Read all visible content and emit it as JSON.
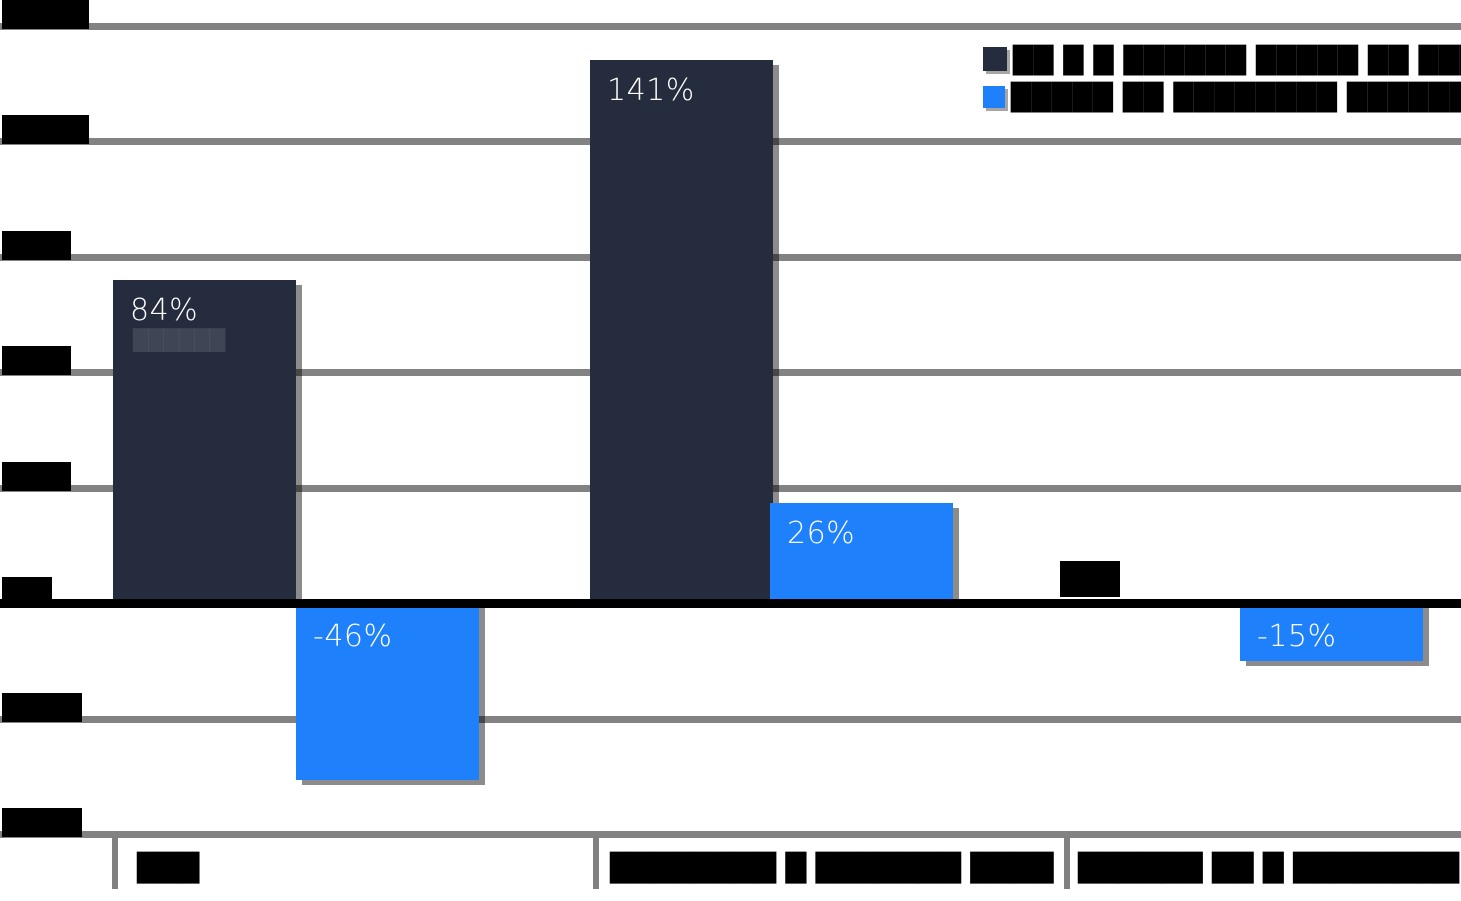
{
  "chart_data": {
    "type": "bar",
    "title": "",
    "categories": [
      "███",
      "████████ █ ███████ ████",
      "██████ ██ █ ████████ ████"
    ],
    "series": [
      {
        "name": "██ █ █ ██████ █████ ██ █████",
        "color": "#252C3E",
        "values": [
          84,
          141,
          1
        ],
        "labels": [
          "84%",
          "141%",
          "1%"
        ],
        "label_redacted": [
          false,
          false,
          true
        ],
        "sub_labels": [
          "██████",
          "",
          ""
        ]
      },
      {
        "name": "█████ ██ ████████ ███████",
        "color": "#1F80FC",
        "values": [
          -46,
          26,
          -15
        ],
        "labels": [
          "-46%",
          "26%",
          "-15%"
        ],
        "label_redacted": [
          false,
          false,
          false
        ],
        "sub_labels": [
          "",
          "",
          ""
        ]
      }
    ],
    "ylim": [
      -60,
      150
    ],
    "yticks": [
      150,
      120,
      90,
      60,
      30,
      0,
      -30,
      -60
    ],
    "ytick_labels": [
      "150%",
      "120%",
      "90%",
      "60%",
      "30%",
      "0%",
      "-30%",
      "-60%"
    ],
    "ytick_style": "redacted",
    "grid": true,
    "legend_position": "top-right",
    "colors": {
      "dark_series": "#252C3E",
      "blue_series": "#1F80FC",
      "gridline": "#828282",
      "zero_axis": "#000000",
      "category_divider": "#808080",
      "background": "#FFFFFF",
      "data_label": "#FFFFFF"
    }
  }
}
